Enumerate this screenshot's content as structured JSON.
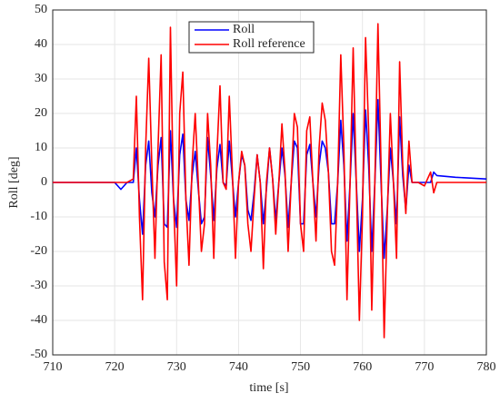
{
  "chart_data": {
    "type": "line",
    "xlabel": "time [s]",
    "ylabel": "Roll [deg]",
    "x": [
      710,
      715,
      720,
      721,
      722,
      723,
      723.5,
      724,
      724.5,
      725,
      725.5,
      726,
      726.5,
      727,
      727.5,
      728,
      728.5,
      729,
      729.5,
      730,
      730.5,
      731,
      731.5,
      732,
      732.5,
      733,
      733.5,
      734,
      734.5,
      735,
      735.5,
      736,
      736.5,
      737,
      737.5,
      738,
      738.5,
      739,
      739.5,
      740,
      740.5,
      741,
      741.5,
      742,
      742.5,
      743,
      743.5,
      744,
      744.5,
      745,
      745.5,
      746,
      746.5,
      747,
      747.5,
      748,
      748.5,
      749,
      749.5,
      750,
      750.5,
      751,
      751.5,
      752,
      752.5,
      753,
      753.5,
      754,
      754.5,
      755,
      755.5,
      756,
      756.5,
      757,
      757.5,
      758,
      758.5,
      759,
      759.5,
      760,
      760.5,
      761,
      761.5,
      762,
      762.5,
      763,
      763.5,
      764,
      764.5,
      765,
      765.5,
      766,
      766.5,
      767,
      767.5,
      768,
      769,
      770,
      771,
      771.5,
      772,
      775,
      780
    ],
    "series": [
      {
        "name": "Roll",
        "color": "#0000ff",
        "values": [
          0,
          0,
          0,
          -2,
          0,
          0,
          10,
          -5,
          -15,
          5,
          12,
          -3,
          -10,
          5,
          13,
          -12,
          -13,
          15,
          -5,
          -13,
          8,
          14,
          -5,
          -11,
          2,
          9,
          -2,
          -12,
          -10,
          13,
          2,
          -11,
          4,
          11,
          0,
          -1,
          12,
          1,
          -10,
          0,
          8,
          5,
          -8,
          -11,
          -3,
          8,
          0,
          -12,
          -2,
          10,
          1,
          -11,
          0,
          10,
          2,
          -13,
          0,
          12,
          10,
          -12,
          -12,
          8,
          11,
          0,
          -10,
          5,
          12,
          10,
          3,
          -12,
          -12,
          0,
          18,
          5,
          -17,
          0,
          20,
          0,
          -20,
          -5,
          21,
          5,
          -20,
          0,
          24,
          0,
          -22,
          -8,
          10,
          0,
          -12,
          19,
          2,
          -8,
          5,
          0,
          0,
          0,
          0,
          3,
          2,
          1.5,
          1
        ]
      },
      {
        "name": "Roll reference",
        "color": "#ff0000",
        "values": [
          0,
          0,
          0,
          0,
          0,
          1,
          25,
          -10,
          -34,
          10,
          36,
          5,
          -22,
          10,
          37,
          -23,
          -34,
          45,
          -5,
          -30,
          20,
          32,
          -5,
          -24,
          5,
          20,
          0,
          -20,
          -12,
          20,
          5,
          -22,
          8,
          28,
          0,
          -2,
          25,
          3,
          -22,
          0,
          9,
          5,
          -12,
          -20,
          -5,
          8,
          0,
          -25,
          0,
          10,
          1,
          -15,
          0,
          17,
          3,
          -20,
          0,
          20,
          16,
          -12,
          -20,
          15,
          19,
          0,
          -17,
          10,
          23,
          18,
          3,
          -20,
          -24,
          0,
          37,
          10,
          -34,
          0,
          39,
          0,
          -40,
          -10,
          42,
          15,
          -37,
          0,
          46,
          5,
          -45,
          -10,
          20,
          0,
          -22,
          35,
          5,
          -9,
          12,
          0,
          0,
          -1,
          3,
          -3,
          0,
          0,
          0
        ]
      }
    ],
    "xlim": [
      710,
      780
    ],
    "xticks": [
      710,
      720,
      730,
      740,
      750,
      760,
      770,
      780
    ],
    "ylim": [
      -50,
      50
    ],
    "yticks": [
      -50,
      -40,
      -30,
      -20,
      -10,
      0,
      10,
      20,
      30,
      40,
      50
    ],
    "grid": true,
    "legend": "top"
  }
}
